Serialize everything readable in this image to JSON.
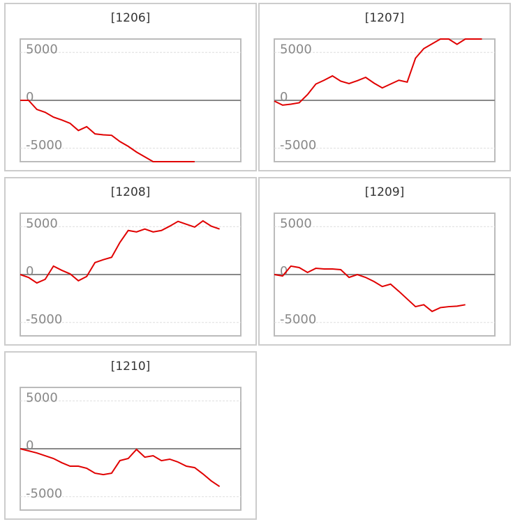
{
  "chart_data": [
    {
      "type": "line",
      "title": "[1206]",
      "color": "#e00000",
      "ylim": [
        -6400,
        6400
      ],
      "yticks": [
        -5000,
        0,
        5000
      ],
      "grid": true,
      "categories": [
        null,
        null,
        null,
        null,
        null,
        null,
        null,
        null,
        null,
        null,
        null,
        null,
        null,
        null,
        null,
        null,
        null,
        null,
        null,
        null,
        null,
        null
      ],
      "values": [
        0,
        0,
        -950,
        -1250,
        -1750,
        -2050,
        -2400,
        -3150,
        -2750,
        -3500,
        -3600,
        -3650,
        -4300,
        -4800,
        -5400,
        -5900,
        -6400,
        -6400,
        -6400,
        -6400,
        -6400,
        -6400
      ]
    },
    {
      "type": "line",
      "title": "[1207]",
      "color": "#e00000",
      "ylim": [
        -6400,
        6400
      ],
      "yticks": [
        -5000,
        0,
        5000
      ],
      "grid": true,
      "categories": [
        null,
        null,
        null,
        null,
        null,
        null,
        null,
        null,
        null,
        null,
        null,
        null,
        null,
        null,
        null,
        null,
        null,
        null,
        null,
        null,
        null,
        null,
        null,
        null,
        null,
        null
      ],
      "values": [
        -70,
        -500,
        -400,
        -250,
        600,
        1700,
        2100,
        2550,
        2000,
        1750,
        2050,
        2400,
        1800,
        1300,
        1700,
        2100,
        1900,
        4400,
        5400,
        5900,
        6400,
        6400,
        5850,
        6400,
        6400,
        6400
      ]
    },
    {
      "type": "line",
      "title": "[1208]",
      "color": "#e00000",
      "ylim": [
        -6400,
        6400
      ],
      "yticks": [
        -5000,
        0,
        5000
      ],
      "grid": true,
      "categories": [
        null,
        null,
        null,
        null,
        null,
        null,
        null,
        null,
        null,
        null,
        null,
        null,
        null,
        null,
        null,
        null,
        null,
        null,
        null,
        null,
        null,
        null,
        null,
        null,
        null
      ],
      "values": [
        0,
        -300,
        -880,
        -500,
        880,
        440,
        70,
        -650,
        -200,
        1250,
        1550,
        1800,
        3350,
        4600,
        4450,
        4750,
        4450,
        4600,
        5050,
        5550,
        5250,
        4950,
        5600,
        5050,
        4750
      ]
    },
    {
      "type": "line",
      "title": "[1209]",
      "color": "#e00000",
      "ylim": [
        -6400,
        6400
      ],
      "yticks": [
        -5000,
        0,
        5000
      ],
      "grid": true,
      "categories": [
        null,
        null,
        null,
        null,
        null,
        null,
        null,
        null,
        null,
        null,
        null,
        null,
        null,
        null,
        null,
        null,
        null,
        null,
        null,
        null,
        null,
        null,
        null,
        null
      ],
      "values": [
        0,
        -150,
        880,
        730,
        220,
        650,
        580,
        580,
        510,
        -300,
        0,
        -300,
        -730,
        -1250,
        -1000,
        -1750,
        -2550,
        -3350,
        -3150,
        -3850,
        -3450,
        -3350,
        -3300,
        -3150
      ]
    },
    {
      "type": "line",
      "title": "[1210]",
      "color": "#e00000",
      "ylim": [
        -6400,
        6400
      ],
      "yticks": [
        -5000,
        0,
        5000
      ],
      "grid": true,
      "categories": [
        null,
        null,
        null,
        null,
        null,
        null,
        null,
        null,
        null,
        null,
        null,
        null,
        null,
        null,
        null,
        null,
        null,
        null,
        null,
        null,
        null,
        null,
        null,
        null,
        null
      ],
      "values": [
        0,
        -220,
        -440,
        -730,
        -1020,
        -1460,
        -1820,
        -1820,
        -2040,
        -2550,
        -2700,
        -2550,
        -1240,
        -1020,
        -70,
        -880,
        -730,
        -1240,
        -1090,
        -1390,
        -1820,
        -1970,
        -2630,
        -3360,
        -3940
      ]
    }
  ]
}
